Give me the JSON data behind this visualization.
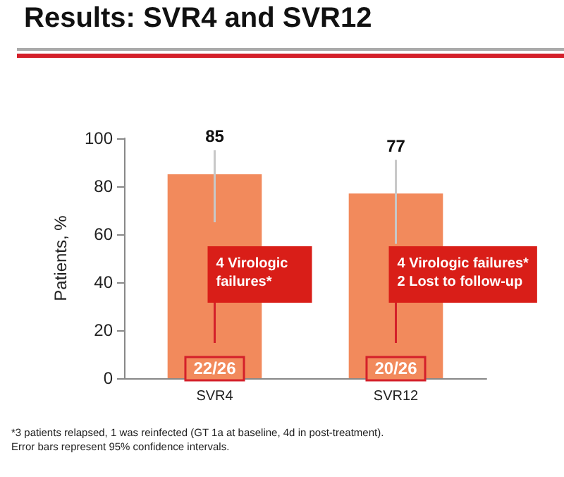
{
  "chart_data": {
    "type": "bar",
    "title": "Results: SVR4 and SVR12",
    "ylabel": "Patients, %",
    "categories": [
      "SVR4",
      "SVR12"
    ],
    "values": [
      85,
      77
    ],
    "color": "#f28a5c",
    "errors": [
      [
        65,
        95
      ],
      [
        56,
        91
      ]
    ],
    "ylim": [
      0,
      100
    ],
    "yticks": [
      0,
      20,
      40,
      60,
      80,
      100
    ],
    "grid": false,
    "data_labels": true,
    "annotations": [
      "4 Virologic failures*",
      "22/26",
      "4 Virologic failures*\n2 Lost to follow-up",
      "20/26",
      "*3 patients relapsed, 1 was reinfected (GT 1a at baseline, 4d in post-treatment).",
      "Error bars represent 95% confidence intervals."
    ]
  }
}
